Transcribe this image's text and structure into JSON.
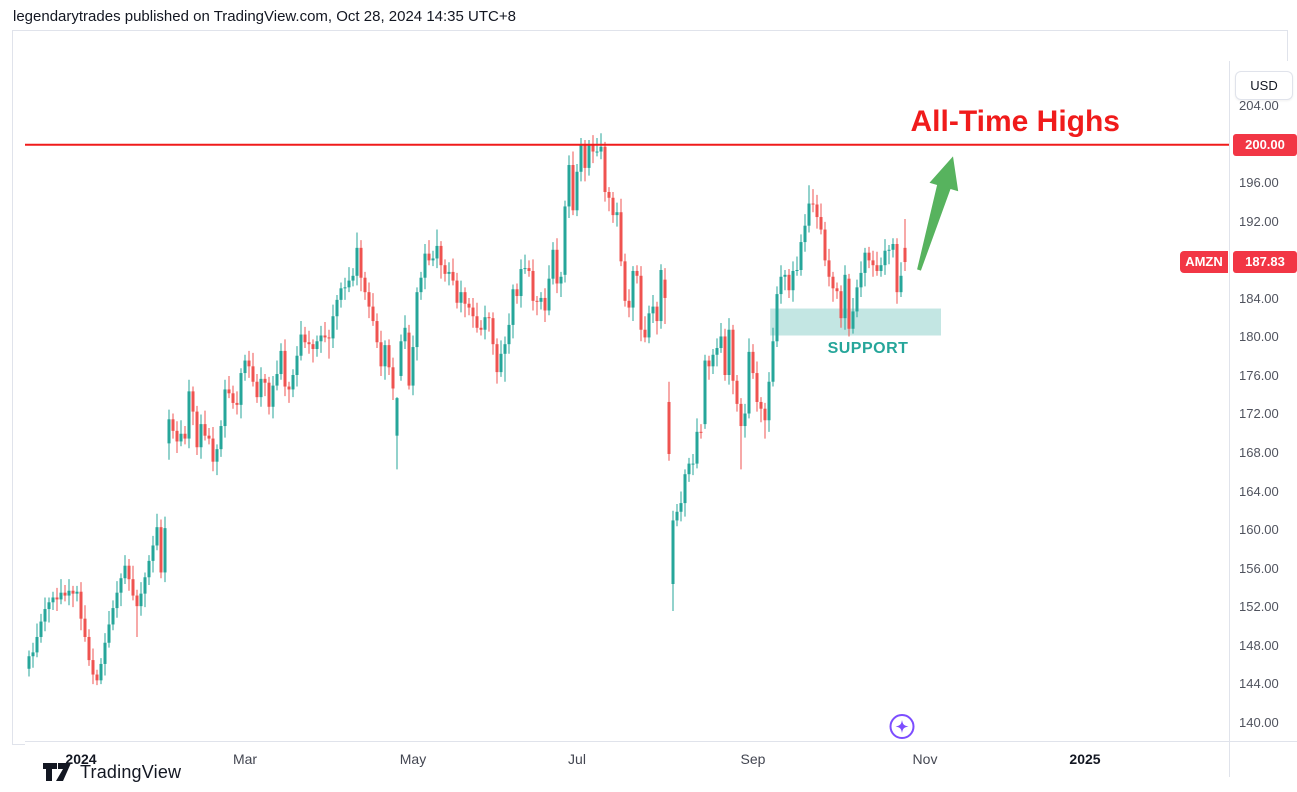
{
  "ui": {
    "header_title": "legendarytrades published on TradingView.com, Oct 28, 2024 14:35 UTC+8",
    "usd_button": "USD",
    "ath_label": "All-Time Highs",
    "support_label": "SUPPORT",
    "brand": "TradingView",
    "badges": {
      "symbol": "AMZN",
      "line_price": "200.00",
      "last_price": "187.83"
    }
  },
  "style": {
    "up": "#26a69a",
    "down": "#ef5350",
    "line_red": "#f01b1b",
    "badge_red": "#f23645",
    "support_fill": "rgba(38,166,154,0.28)",
    "support_text": "#26a69a",
    "arrow_green": "#57b35e",
    "marker_purple": "#7c4dff",
    "axis_text": "#50535e",
    "brand_dark": "#131722"
  },
  "chart_data": {
    "type": "candlestick",
    "symbol": "AMZN",
    "currency": "USD",
    "timeframe": "daily",
    "last_price": 187.83,
    "ath_line": 200.0,
    "y_domain": [
      138.1,
      208.7
    ],
    "y_ticks": [
      "204.00",
      "196.00",
      "192.00",
      "184.00",
      "180.00",
      "176.00",
      "172.00",
      "168.00",
      "164.00",
      "160.00",
      "156.00",
      "152.00",
      "148.00",
      "144.00",
      "140.00"
    ],
    "x_ticks": [
      {
        "label": "2024",
        "index": 13,
        "major": true
      },
      {
        "label": "Mar",
        "index": 54,
        "major": false
      },
      {
        "label": "May",
        "index": 96,
        "major": false
      },
      {
        "label": "Jul",
        "index": 137,
        "major": false
      },
      {
        "label": "Sep",
        "index": 181,
        "major": false
      },
      {
        "label": "Nov",
        "index": 224,
        "major": false
      },
      {
        "label": "2025",
        "index": 264,
        "major": true
      }
    ],
    "support_zone": {
      "price_top": 183.0,
      "price_bottom": 180.2,
      "start_index": 185.3,
      "end_index": 228
    },
    "arrow": {
      "from_index": 222.5,
      "from_price": 187.0,
      "to_index": 231,
      "to_price": 198.8
    },
    "idea_marker": {
      "index": 218.25,
      "price": 139.6
    },
    "candles": [
      [
        145.6,
        147.5,
        144.8,
        146.9
      ],
      [
        146.9,
        148.3,
        145.7,
        147.3
      ],
      [
        147.3,
        150.3,
        146.8,
        148.9
      ],
      [
        148.9,
        151.3,
        148.3,
        150.5
      ],
      [
        150.5,
        153.0,
        149.5,
        151.8
      ],
      [
        151.8,
        153.0,
        150.4,
        152.5
      ],
      [
        152.5,
        153.6,
        151.7,
        153.0
      ],
      [
        153.0,
        154.0,
        151.6,
        152.8
      ],
      [
        152.8,
        154.9,
        152.3,
        153.5
      ],
      [
        153.5,
        154.3,
        152.6,
        153.2
      ],
      [
        153.2,
        154.9,
        152.2,
        153.7
      ],
      [
        153.7,
        154.2,
        152.0,
        153.4
      ],
      [
        153.4,
        154.2,
        152.6,
        153.6
      ],
      [
        153.6,
        154.6,
        149.6,
        150.8
      ],
      [
        150.8,
        152.2,
        148.4,
        148.9
      ],
      [
        148.9,
        149.7,
        145.9,
        146.5
      ],
      [
        146.5,
        147.7,
        144.0,
        145.0
      ],
      [
        145.0,
        145.5,
        143.9,
        144.4
      ],
      [
        144.4,
        146.7,
        144.0,
        146.1
      ],
      [
        146.1,
        149.3,
        144.9,
        148.3
      ],
      [
        148.3,
        151.6,
        147.8,
        150.2
      ],
      [
        150.2,
        152.7,
        149.6,
        151.9
      ],
      [
        151.9,
        154.7,
        150.9,
        153.5
      ],
      [
        153.5,
        155.5,
        152.1,
        155.0
      ],
      [
        155.0,
        157.4,
        154.4,
        156.3
      ],
      [
        156.3,
        157.0,
        153.7,
        154.9
      ],
      [
        154.9,
        156.3,
        152.7,
        153.2
      ],
      [
        153.2,
        153.8,
        148.9,
        152.1
      ],
      [
        152.1,
        154.6,
        151.1,
        153.4
      ],
      [
        153.4,
        155.6,
        152.0,
        155.1
      ],
      [
        155.1,
        157.4,
        154.3,
        156.8
      ],
      [
        156.8,
        159.4,
        155.6,
        158.4
      ],
      [
        158.4,
        161.7,
        157.9,
        160.3
      ],
      [
        160.3,
        161.1,
        155.0,
        155.6
      ],
      [
        155.6,
        161.4,
        154.6,
        160.2
      ],
      [
        169.0,
        172.5,
        167.3,
        171.5
      ],
      [
        171.5,
        172.1,
        169.5,
        170.3
      ],
      [
        170.3,
        171.3,
        168.0,
        169.2
      ],
      [
        169.2,
        171.4,
        168.7,
        170.0
      ],
      [
        170.0,
        170.8,
        168.9,
        169.5
      ],
      [
        169.5,
        175.6,
        168.5,
        174.4
      ],
      [
        174.4,
        174.9,
        170.9,
        172.3
      ],
      [
        172.3,
        172.9,
        167.8,
        168.6
      ],
      [
        168.6,
        172.0,
        167.4,
        171.0
      ],
      [
        171.0,
        172.4,
        169.3,
        169.8
      ],
      [
        169.8,
        170.6,
        168.9,
        169.5
      ],
      [
        169.5,
        170.7,
        166.1,
        167.1
      ],
      [
        167.1,
        168.9,
        165.7,
        168.4
      ],
      [
        168.4,
        171.4,
        167.6,
        170.8
      ],
      [
        170.8,
        175.6,
        169.6,
        174.6
      ],
      [
        174.6,
        176.0,
        173.7,
        174.2
      ],
      [
        174.2,
        175.0,
        172.6,
        173.2
      ],
      [
        173.2,
        174.4,
        172.0,
        173.0
      ],
      [
        173.0,
        176.8,
        171.6,
        176.3
      ],
      [
        176.3,
        178.2,
        175.5,
        177.6
      ],
      [
        177.6,
        178.6,
        175.8,
        177.0
      ],
      [
        177.0,
        178.4,
        174.9,
        175.4
      ],
      [
        175.4,
        176.2,
        173.2,
        173.8
      ],
      [
        173.8,
        176.9,
        172.8,
        175.7
      ],
      [
        175.7,
        176.2,
        173.9,
        175.3
      ],
      [
        175.3,
        175.9,
        172.0,
        172.8
      ],
      [
        172.8,
        176.0,
        171.6,
        175.0
      ],
      [
        175.0,
        177.6,
        174.5,
        176.2
      ],
      [
        176.2,
        179.4,
        175.6,
        178.6
      ],
      [
        178.6,
        179.8,
        173.9,
        174.9
      ],
      [
        174.9,
        175.4,
        173.2,
        174.6
      ],
      [
        174.6,
        176.7,
        173.8,
        176.1
      ],
      [
        176.1,
        179.1,
        174.9,
        178.1
      ],
      [
        178.1,
        181.7,
        177.6,
        180.3
      ],
      [
        180.3,
        181.1,
        178.9,
        179.5
      ],
      [
        179.5,
        180.7,
        178.3,
        179.3
      ],
      [
        179.3,
        179.8,
        177.4,
        178.8
      ],
      [
        178.8,
        180.2,
        178.0,
        179.6
      ],
      [
        179.6,
        181.2,
        178.4,
        180.2
      ],
      [
        180.2,
        181.6,
        179.5,
        180.0
      ],
      [
        180.0,
        180.8,
        177.8,
        179.9
      ],
      [
        179.9,
        183.4,
        178.9,
        182.2
      ],
      [
        182.2,
        184.4,
        180.8,
        183.9
      ],
      [
        183.9,
        185.7,
        183.1,
        185.1
      ],
      [
        185.1,
        186.2,
        183.9,
        185.2
      ],
      [
        185.2,
        187.3,
        184.7,
        185.9
      ],
      [
        185.9,
        187.2,
        185.3,
        186.4
      ],
      [
        186.4,
        190.9,
        185.4,
        189.3
      ],
      [
        189.3,
        190.1,
        184.8,
        186.2
      ],
      [
        186.2,
        186.8,
        183.9,
        184.7
      ],
      [
        184.7,
        185.7,
        182.0,
        183.2
      ],
      [
        183.2,
        184.6,
        181.2,
        181.7
      ],
      [
        181.7,
        182.5,
        178.9,
        179.5
      ],
      [
        179.5,
        180.7,
        176.0,
        177.0
      ],
      [
        177.0,
        179.7,
        175.6,
        179.2
      ],
      [
        179.2,
        179.8,
        176.1,
        176.9
      ],
      [
        176.9,
        177.9,
        173.5,
        174.7
      ],
      [
        169.8,
        173.8,
        166.3,
        173.7
      ],
      [
        176.0,
        180.3,
        175.5,
        179.6
      ],
      [
        179.6,
        182.3,
        178.8,
        181.0
      ],
      [
        180.5,
        181.3,
        174.6,
        175.0
      ],
      [
        175.0,
        180.2,
        174.0,
        179.0
      ],
      [
        179.0,
        185.2,
        177.6,
        184.7
      ],
      [
        184.7,
        186.8,
        183.9,
        186.2
      ],
      [
        186.2,
        189.7,
        185.0,
        188.7
      ],
      [
        188.7,
        190.1,
        187.5,
        188.0
      ],
      [
        188.0,
        189.0,
        187.4,
        188.2
      ],
      [
        188.2,
        191.2,
        187.2,
        189.5
      ],
      [
        189.5,
        190.0,
        186.1,
        187.5
      ],
      [
        187.5,
        188.1,
        185.8,
        186.6
      ],
      [
        186.6,
        187.8,
        185.4,
        186.8
      ],
      [
        186.8,
        188.2,
        185.4,
        185.9
      ],
      [
        185.9,
        186.7,
        183.0,
        183.6
      ],
      [
        183.6,
        185.9,
        182.6,
        184.7
      ],
      [
        184.7,
        185.2,
        182.1,
        183.5
      ],
      [
        183.5,
        184.1,
        182.3,
        183.1
      ],
      [
        183.1,
        184.1,
        181.0,
        182.2
      ],
      [
        182.2,
        183.6,
        180.5,
        181.0
      ],
      [
        181.0,
        181.8,
        180.2,
        180.8
      ],
      [
        180.8,
        183.3,
        179.8,
        182.1
      ],
      [
        182.1,
        182.6,
        180.6,
        182.0
      ],
      [
        182.0,
        182.6,
        178.2,
        179.3
      ],
      [
        179.3,
        179.9,
        175.2,
        176.4
      ],
      [
        176.4,
        179.7,
        175.9,
        178.3
      ],
      [
        178.3,
        180.1,
        175.4,
        179.3
      ],
      [
        179.3,
        182.5,
        178.3,
        181.3
      ],
      [
        181.3,
        185.5,
        179.9,
        185.0
      ],
      [
        185.0,
        185.6,
        183.5,
        184.3
      ],
      [
        184.3,
        188.1,
        183.1,
        187.1
      ],
      [
        187.1,
        188.6,
        186.6,
        187.2
      ],
      [
        187.2,
        188.0,
        186.3,
        186.9
      ],
      [
        186.9,
        188.1,
        182.8,
        183.8
      ],
      [
        183.8,
        184.3,
        182.3,
        183.7
      ],
      [
        183.7,
        184.7,
        182.9,
        184.1
      ],
      [
        184.1,
        185.1,
        181.6,
        182.8
      ],
      [
        182.8,
        187.5,
        182.3,
        186.1
      ],
      [
        186.1,
        189.9,
        185.5,
        189.1
      ],
      [
        189.1,
        190.3,
        184.6,
        185.6
      ],
      [
        185.6,
        186.8,
        184.2,
        186.3
      ],
      [
        186.5,
        194.2,
        185.7,
        193.6
      ],
      [
        193.6,
        198.9,
        192.4,
        197.9
      ],
      [
        197.9,
        199.3,
        192.7,
        193.2
      ],
      [
        193.2,
        198.0,
        192.6,
        197.2
      ],
      [
        197.2,
        200.7,
        196.2,
        200.0
      ],
      [
        200.0,
        200.5,
        196.2,
        197.6
      ],
      [
        197.6,
        200.5,
        196.8,
        200.0
      ],
      [
        200.0,
        201.0,
        198.1,
        199.3
      ],
      [
        199.3,
        200.7,
        198.8,
        199.3
      ],
      [
        199.3,
        201.2,
        198.5,
        199.8
      ],
      [
        199.8,
        200.3,
        194.1,
        195.1
      ],
      [
        195.1,
        195.6,
        193.1,
        194.5
      ],
      [
        194.5,
        195.1,
        191.9,
        192.7
      ],
      [
        192.7,
        194.0,
        191.5,
        193.0
      ],
      [
        193.0,
        194.4,
        187.4,
        187.9
      ],
      [
        187.9,
        188.7,
        183.2,
        183.8
      ],
      [
        183.8,
        185.0,
        182.1,
        183.1
      ],
      [
        183.1,
        187.4,
        181.7,
        186.9
      ],
      [
        186.9,
        187.5,
        185.6,
        186.4
      ],
      [
        186.4,
        187.4,
        179.6,
        180.8
      ],
      [
        180.8,
        182.2,
        179.5,
        180.0
      ],
      [
        180.0,
        183.3,
        179.4,
        182.5
      ],
      [
        182.5,
        184.4,
        181.5,
        183.2
      ],
      [
        183.2,
        183.7,
        180.3,
        181.7
      ],
      [
        181.7,
        187.6,
        180.9,
        187.0
      ],
      [
        186.0,
        187.2,
        181.4,
        184.1
      ],
      [
        173.3,
        175.4,
        167.2,
        167.9
      ],
      [
        154.4,
        162.0,
        151.6,
        161.0
      ],
      [
        161.0,
        162.7,
        160.4,
        161.9
      ],
      [
        161.9,
        164.0,
        160.9,
        162.8
      ],
      [
        162.8,
        166.3,
        161.4,
        165.8
      ],
      [
        165.8,
        167.5,
        165.0,
        166.9
      ],
      [
        166.9,
        167.9,
        165.7,
        166.9
      ],
      [
        166.9,
        171.6,
        166.4,
        170.2
      ],
      [
        170.2,
        171.0,
        169.5,
        170.1
      ],
      [
        171.0,
        178.2,
        170.5,
        177.6
      ],
      [
        177.6,
        178.1,
        175.6,
        177.0
      ],
      [
        177.0,
        178.8,
        176.2,
        178.2
      ],
      [
        178.2,
        179.9,
        177.0,
        178.9
      ],
      [
        178.9,
        181.5,
        178.4,
        180.1
      ],
      [
        180.1,
        180.9,
        175.5,
        176.1
      ],
      [
        176.1,
        182.0,
        175.1,
        180.8
      ],
      [
        180.8,
        181.3,
        174.1,
        175.5
      ],
      [
        175.5,
        176.1,
        172.3,
        173.1
      ],
      [
        173.1,
        173.7,
        166.3,
        170.8
      ],
      [
        170.8,
        173.1,
        169.6,
        172.1
      ],
      [
        172.1,
        179.9,
        171.6,
        178.5
      ],
      [
        178.5,
        179.3,
        175.7,
        176.3
      ],
      [
        176.3,
        177.5,
        172.3,
        173.3
      ],
      [
        173.3,
        173.8,
        171.2,
        172.6
      ],
      [
        172.6,
        173.2,
        169.5,
        171.4
      ],
      [
        171.4,
        176.4,
        170.2,
        175.4
      ],
      [
        175.4,
        181.0,
        174.9,
        179.6
      ],
      [
        179.6,
        185.3,
        179.0,
        184.5
      ],
      [
        184.5,
        187.5,
        183.5,
        186.3
      ],
      [
        186.3,
        187.0,
        184.9,
        186.5
      ],
      [
        186.5,
        187.1,
        184.1,
        184.9
      ],
      [
        184.9,
        187.9,
        183.7,
        186.9
      ],
      [
        186.9,
        188.4,
        186.4,
        187.0
      ],
      [
        187.0,
        190.7,
        186.4,
        189.9
      ],
      [
        189.9,
        192.8,
        188.9,
        191.6
      ],
      [
        191.6,
        195.8,
        190.9,
        193.9
      ],
      [
        193.9,
        195.4,
        193.0,
        193.8
      ],
      [
        193.8,
        194.8,
        191.3,
        192.5
      ],
      [
        192.5,
        193.9,
        190.7,
        191.2
      ],
      [
        191.2,
        192.0,
        187.4,
        188.0
      ],
      [
        188.0,
        189.2,
        185.3,
        186.3
      ],
      [
        186.3,
        186.8,
        183.7,
        185.1
      ],
      [
        185.1,
        185.7,
        184.0,
        184.8
      ],
      [
        184.8,
        185.4,
        181.0,
        182.0
      ],
      [
        182.0,
        187.5,
        180.8,
        186.5
      ],
      [
        186.1,
        186.6,
        180.1,
        180.9
      ],
      [
        180.9,
        184.1,
        180.4,
        182.7
      ],
      [
        182.7,
        186.0,
        182.1,
        185.2
      ],
      [
        185.2,
        187.9,
        184.2,
        186.7
      ],
      [
        186.7,
        189.3,
        185.3,
        188.8
      ],
      [
        188.8,
        189.4,
        187.2,
        188.0
      ],
      [
        188.0,
        189.0,
        186.3,
        187.5
      ],
      [
        187.5,
        188.9,
        186.4,
        186.9
      ],
      [
        186.9,
        188.3,
        186.3,
        187.5
      ],
      [
        187.5,
        190.2,
        186.5,
        189.0
      ],
      [
        189.0,
        189.6,
        187.6,
        189.1
      ],
      [
        189.1,
        190.3,
        188.3,
        189.7
      ],
      [
        189.7,
        190.3,
        183.5,
        184.7
      ],
      [
        184.7,
        187.8,
        184.2,
        186.4
      ],
      [
        189.3,
        192.3,
        186.9,
        187.83
      ]
    ]
  }
}
